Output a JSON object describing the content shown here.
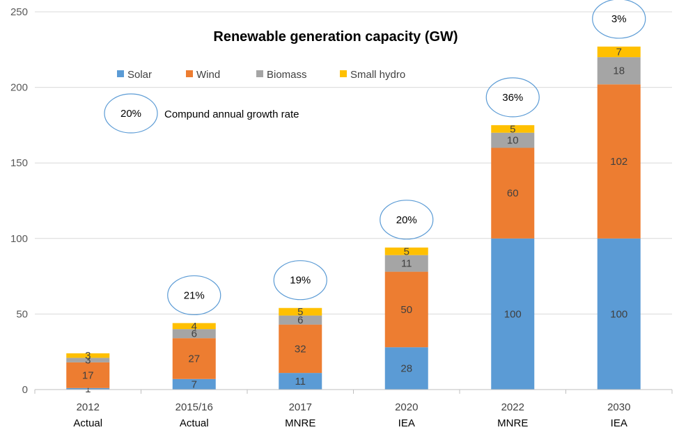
{
  "chart_data": {
    "type": "bar",
    "stacked": true,
    "title": "Renewable generation capacity (GW)",
    "xlabel": "",
    "ylabel": "",
    "ylim": [
      0,
      250
    ],
    "yticks": [
      0,
      50,
      100,
      150,
      200,
      250
    ],
    "grid": "horizontal",
    "legend": "top-center",
    "categories": [
      "2012",
      "2015/16",
      "2017",
      "2020",
      "2022",
      "2030"
    ],
    "category_sublabels": [
      "Actual",
      "Actual",
      "MNRE",
      "IEA",
      "MNRE",
      "IEA"
    ],
    "series": [
      {
        "name": "Solar",
        "color": "#5B9BD5",
        "values": [
          1,
          7,
          11,
          28,
          100,
          100
        ]
      },
      {
        "name": "Wind",
        "color": "#ED7D31",
        "values": [
          17,
          27,
          32,
          50,
          60,
          102
        ]
      },
      {
        "name": "Biomass",
        "color": "#A5A5A5",
        "values": [
          3,
          6,
          6,
          11,
          10,
          18
        ]
      },
      {
        "name": "Small hydro",
        "color": "#FFC000",
        "values": [
          3,
          4,
          5,
          5,
          5,
          7
        ]
      }
    ],
    "growth_rates": [
      "",
      "21%",
      "19%",
      "20%",
      "36%",
      "3%"
    ],
    "annotation": {
      "value": "20%",
      "text": "Compund annual growth rate"
    }
  }
}
